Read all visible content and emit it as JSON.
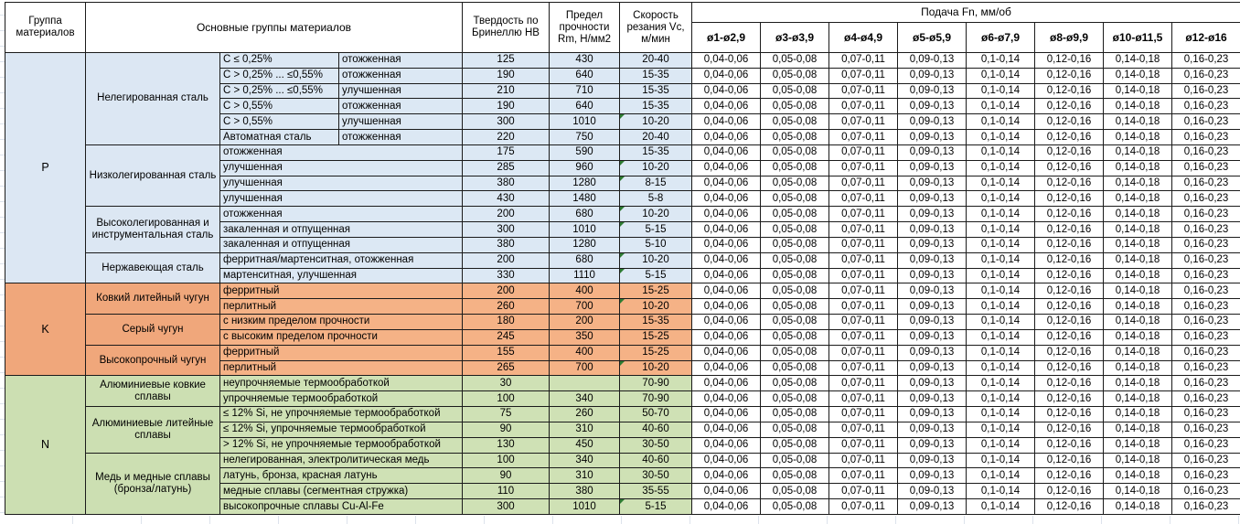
{
  "header": {
    "col_group": "Группа материалов",
    "col_main": "Основные группы материалов",
    "col_hb": "Твердость по Бринеллю HB",
    "col_rm": "Предел прочности Rm, Н/мм2",
    "col_vc": "Скорость резания Vc, м/мин",
    "feed_title": "Подача Fn, мм/об",
    "feed_cols": [
      "ø1-ø2,9",
      "ø3-ø3,9",
      "ø4-ø4,9",
      "ø5-ø5,9",
      "ø6-ø7,9",
      "ø8-ø9,9",
      "ø10-ø11,5",
      "ø12-ø16"
    ]
  },
  "feed_values": [
    "0,04-0,06",
    "0,05-0,08",
    "0,07-0,11",
    "0,09-0,13",
    "0,1-0,14",
    "0,12-0,16",
    "0,14-0,18",
    "0,16-0,23"
  ],
  "colors": {
    "p_group": "#dce7f3",
    "p_row": "#dce8f4",
    "k_group": "#f0a77b",
    "k_row": "#f5b286",
    "n_group": "#ccdfb2",
    "n_row": "#cfe1b5",
    "note_marker": "#2e7d32",
    "border": "#1b1b1b"
  },
  "groups": [
    {
      "code": "P",
      "col_color": "#dce7f3",
      "row_color": "#dce8f4",
      "subgroups": [
        {
          "name": "Нелегированная сталь",
          "rows": [
            {
              "spec": "C ≤ 0,25%",
              "state": "отожженная",
              "hb": "125",
              "rm": "430",
              "vc": "20-40",
              "note": false
            },
            {
              "spec": "C > 0,25% ... ≤0,55%",
              "state": "отожженная",
              "hb": "190",
              "rm": "640",
              "vc": "15-35",
              "note": false
            },
            {
              "spec": "C > 0,25% ... ≤0,55%",
              "state": "улучшенная",
              "hb": "210",
              "rm": "710",
              "vc": "15-35",
              "note": false
            },
            {
              "spec": "C > 0,55%",
              "state": "отожженная",
              "hb": "190",
              "rm": "640",
              "vc": "15-35",
              "note": false
            },
            {
              "spec": "C > 0,55%",
              "state": "улучшенная",
              "hb": "300",
              "rm": "1010",
              "vc": "10-20",
              "note": true
            },
            {
              "spec": "Автоматная сталь",
              "state": "отожженная",
              "hb": "220",
              "rm": "750",
              "vc": "20-40",
              "note": false
            }
          ]
        },
        {
          "name": "Низколегированная сталь",
          "rows": [
            {
              "spec": "отожженная",
              "state": null,
              "hb": "175",
              "rm": "590",
              "vc": "15-35",
              "note": false
            },
            {
              "spec": "улучшенная",
              "state": null,
              "hb": "285",
              "rm": "960",
              "vc": "10-20",
              "note": true
            },
            {
              "spec": "улучшенная",
              "state": null,
              "hb": "380",
              "rm": "1280",
              "vc": "8-15",
              "note": true
            },
            {
              "spec": "улучшенная",
              "state": null,
              "hb": "430",
              "rm": "1480",
              "vc": "5-8",
              "note": false
            }
          ]
        },
        {
          "name": "Высоколегированная и инструментальная сталь",
          "rows": [
            {
              "spec": "отожженная",
              "state": null,
              "hb": "200",
              "rm": "680",
              "vc": "10-20",
              "note": true
            },
            {
              "spec": "закаленная и отпущенная",
              "state": null,
              "hb": "300",
              "rm": "1010",
              "vc": "5-15",
              "note": true
            },
            {
              "spec": "закаленная и отпущенная",
              "state": null,
              "hb": "380",
              "rm": "1280",
              "vc": "5-10",
              "note": false
            }
          ]
        },
        {
          "name": "Нержавеющая сталь",
          "rows": [
            {
              "spec": "ферритная/мартенситная, отожженная",
              "state": null,
              "hb": "200",
              "rm": "680",
              "vc": "10-20",
              "note": true
            },
            {
              "spec": "мартенситная, улучшенная",
              "state": null,
              "hb": "330",
              "rm": "1110",
              "vc": "5-15",
              "note": true
            }
          ]
        }
      ]
    },
    {
      "code": "K",
      "col_color": "#f0a77b",
      "row_color": "#f5b286",
      "subgroups": [
        {
          "name": "Ковкий литейный чугун",
          "rows": [
            {
              "spec": "ферритный",
              "state": null,
              "hb": "200",
              "rm": "400",
              "vc": "15-25",
              "note": false
            },
            {
              "spec": "перлитный",
              "state": null,
              "hb": "260",
              "rm": "700",
              "vc": "10-20",
              "note": true
            }
          ]
        },
        {
          "name": "Серый чугун",
          "rows": [
            {
              "spec": "с низким пределом прочности",
              "state": null,
              "hb": "180",
              "rm": "200",
              "vc": "15-35",
              "note": false
            },
            {
              "spec": "с высоким пределом прочности",
              "state": null,
              "hb": "245",
              "rm": "350",
              "vc": "15-25",
              "note": false
            }
          ]
        },
        {
          "name": "Высокопрочный чугун",
          "rows": [
            {
              "spec": "ферритный",
              "state": null,
              "hb": "155",
              "rm": "400",
              "vc": "15-25",
              "note": false
            },
            {
              "spec": "перлитный",
              "state": null,
              "hb": "265",
              "rm": "700",
              "vc": "10-20",
              "note": true
            }
          ]
        }
      ]
    },
    {
      "code": "N",
      "col_color": "#ccdfb2",
      "row_color": "#cfe1b5",
      "subgroups": [
        {
          "name": "Алюминиевые ковкие сплавы",
          "rows": [
            {
              "spec": "неупрочняемые термообработкой",
              "state": null,
              "hb": "30",
              "rm": "",
              "vc": "70-90",
              "note": false
            },
            {
              "spec": "упрочняемые термообработкой",
              "state": null,
              "hb": "100",
              "rm": "340",
              "vc": "70-90",
              "note": false
            }
          ]
        },
        {
          "name": "Алюминиевые литейные сплавы",
          "rows": [
            {
              "spec": "≤ 12% Si, не упрочняемые термообработкой",
              "state": null,
              "hb": "75",
              "rm": "260",
              "vc": "50-70",
              "note": false
            },
            {
              "spec": "≤ 12% Si, упрочняемые термообработкой",
              "state": null,
              "hb": "90",
              "rm": "310",
              "vc": "40-60",
              "note": false
            },
            {
              "spec": "> 12% Si, не упрочняемые термообработкой",
              "state": null,
              "hb": "130",
              "rm": "450",
              "vc": "30-50",
              "note": false
            }
          ]
        },
        {
          "name": "Медь и медные сплавы (бронза/латунь)",
          "rows": [
            {
              "spec": "нелегированная, электролитическая медь",
              "state": null,
              "hb": "100",
              "rm": "340",
              "vc": "40-60",
              "note": false
            },
            {
              "spec": "латунь, бронза, красная латунь",
              "state": null,
              "hb": "90",
              "rm": "310",
              "vc": "30-50",
              "note": false
            },
            {
              "spec": "медные сплавы (сегментная стружка)",
              "state": null,
              "hb": "110",
              "rm": "380",
              "vc": "35-55",
              "note": false
            },
            {
              "spec": "высокопрочные сплавы Cu-Al-Fe",
              "state": null,
              "hb": "300",
              "rm": "1010",
              "vc": "5-15",
              "note": true
            }
          ]
        }
      ]
    }
  ]
}
